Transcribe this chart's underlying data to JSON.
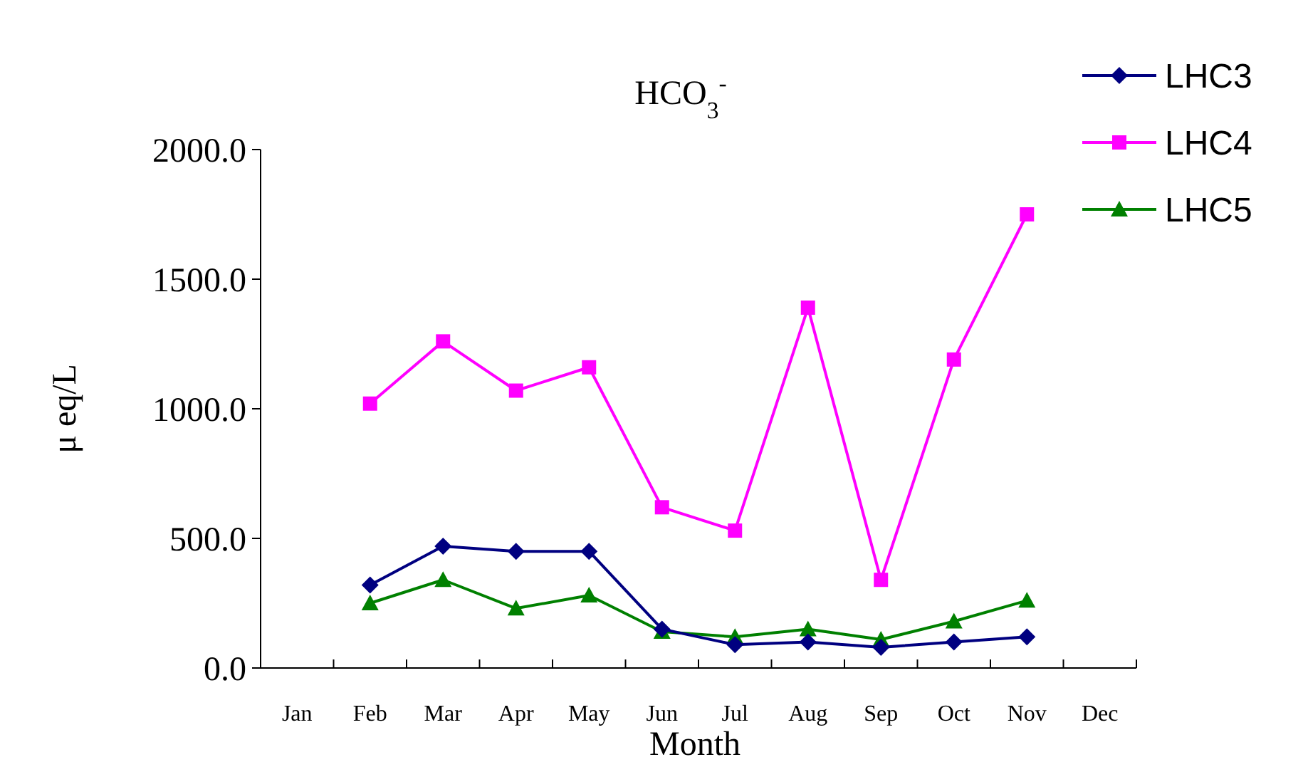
{
  "chart_data": {
    "type": "line",
    "title": "HCO$_{3}$$^{-}$",
    "xlabel": "Month",
    "ylabel": "μ eq/L",
    "categories": [
      "Jan",
      "Feb",
      "Mar",
      "Apr",
      "May",
      "Jun",
      "Jul",
      "Aug",
      "Sep",
      "Oct",
      "Nov",
      "Dec"
    ],
    "ylim": [
      0,
      2000
    ],
    "yticks": [
      {
        "value": 0,
        "label": "0.0"
      },
      {
        "value": 500,
        "label": "500.0"
      },
      {
        "value": 1000,
        "label": "1000.0"
      },
      {
        "value": 1500,
        "label": "1500.0"
      },
      {
        "value": 2000,
        "label": "2000.0"
      }
    ],
    "grid": false,
    "legend": "top right",
    "series": [
      {
        "name": "LHC3",
        "color": "#000080",
        "marker": "diamond",
        "values": [
          null,
          320,
          470,
          450,
          450,
          150,
          90,
          100,
          80,
          100,
          120,
          null
        ]
      },
      {
        "name": "LHC4",
        "color": "#ff00ff",
        "marker": "square",
        "values": [
          null,
          1020,
          1260,
          1070,
          1160,
          620,
          530,
          1390,
          340,
          1190,
          1750,
          null
        ]
      },
      {
        "name": "LHC5",
        "color": "#008000",
        "marker": "triangle",
        "values": [
          null,
          250,
          340,
          230,
          280,
          140,
          120,
          150,
          110,
          180,
          260,
          null
        ]
      }
    ]
  }
}
